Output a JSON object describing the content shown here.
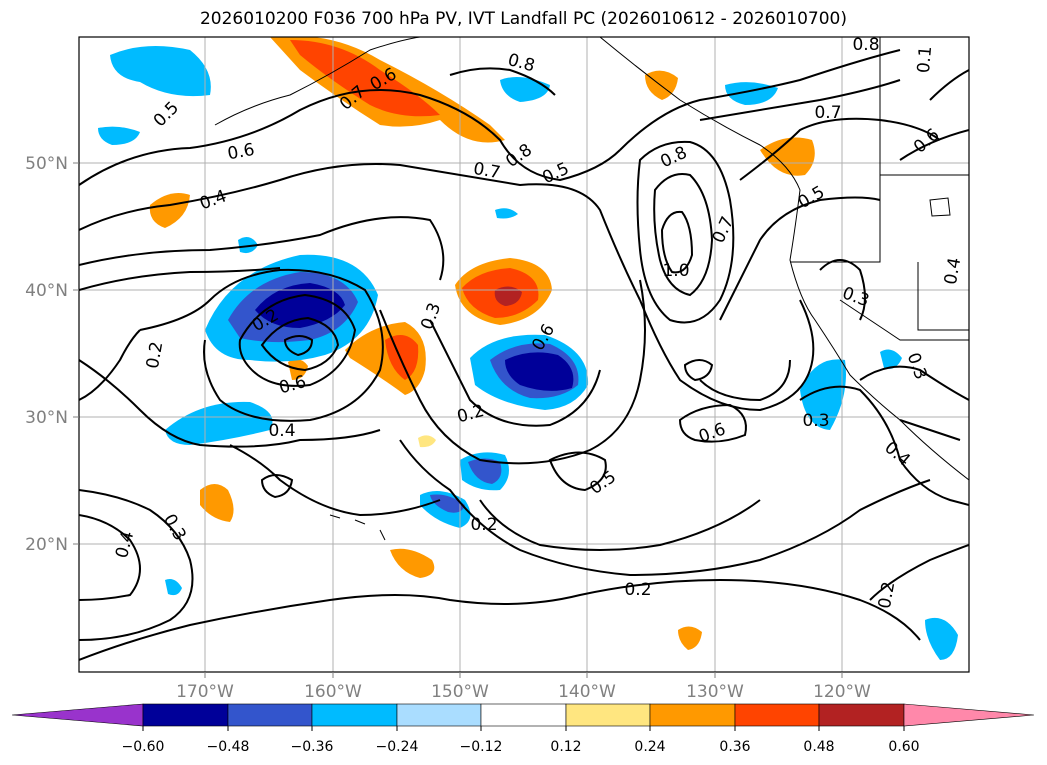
{
  "title": "2026010200 F036 700 hPa PV, IVT Landfall PC (2026010612 - 2026010700)",
  "map": {
    "lat_labels": [
      "50°N",
      "40°N",
      "30°N",
      "20°N"
    ],
    "lon_labels": [
      "170°W",
      "160°W",
      "150°W",
      "140°W",
      "130°W",
      "120°W"
    ],
    "contour_labels": [
      {
        "text": "0.8"
      },
      {
        "text": "0.6"
      },
      {
        "text": "0.7"
      },
      {
        "text": "0.5"
      },
      {
        "text": "0.6"
      },
      {
        "text": "0.4"
      },
      {
        "text": "0.7"
      },
      {
        "text": "0.8"
      },
      {
        "text": "0.5"
      },
      {
        "text": "0.8"
      },
      {
        "text": "0.7"
      },
      {
        "text": "1.0"
      },
      {
        "text": "0.8"
      },
      {
        "text": "0.7"
      },
      {
        "text": "0.6"
      },
      {
        "text": "0.5"
      },
      {
        "text": "0.3"
      },
      {
        "text": "0.2"
      },
      {
        "text": "0.2"
      },
      {
        "text": "0.6"
      },
      {
        "text": "0.6"
      },
      {
        "text": "0.4"
      },
      {
        "text": "0.2"
      },
      {
        "text": "0.6"
      },
      {
        "text": "0.5"
      },
      {
        "text": "0.4"
      },
      {
        "text": "0.3"
      },
      {
        "text": "0.2"
      },
      {
        "text": "0.2"
      },
      {
        "text": "0.3"
      },
      {
        "text": "0.3"
      },
      {
        "text": "0.3"
      },
      {
        "text": "0.4"
      },
      {
        "text": "0.2"
      },
      {
        "text": "0.1"
      },
      {
        "text": "0.4"
      }
    ]
  },
  "colorbar": {
    "tick_labels": [
      "−0.60",
      "−0.48",
      "−0.36",
      "−0.24",
      "−0.12",
      "0.12",
      "0.24",
      "0.36",
      "0.48",
      "0.60"
    ],
    "colors": [
      "#9933cc",
      "#000099",
      "#3355cc",
      "#00bbff",
      "#aaddff",
      "#ffffff",
      "#ffe680",
      "#ff9900",
      "#ff4400",
      "#b22222",
      "#ff88aa"
    ]
  }
}
